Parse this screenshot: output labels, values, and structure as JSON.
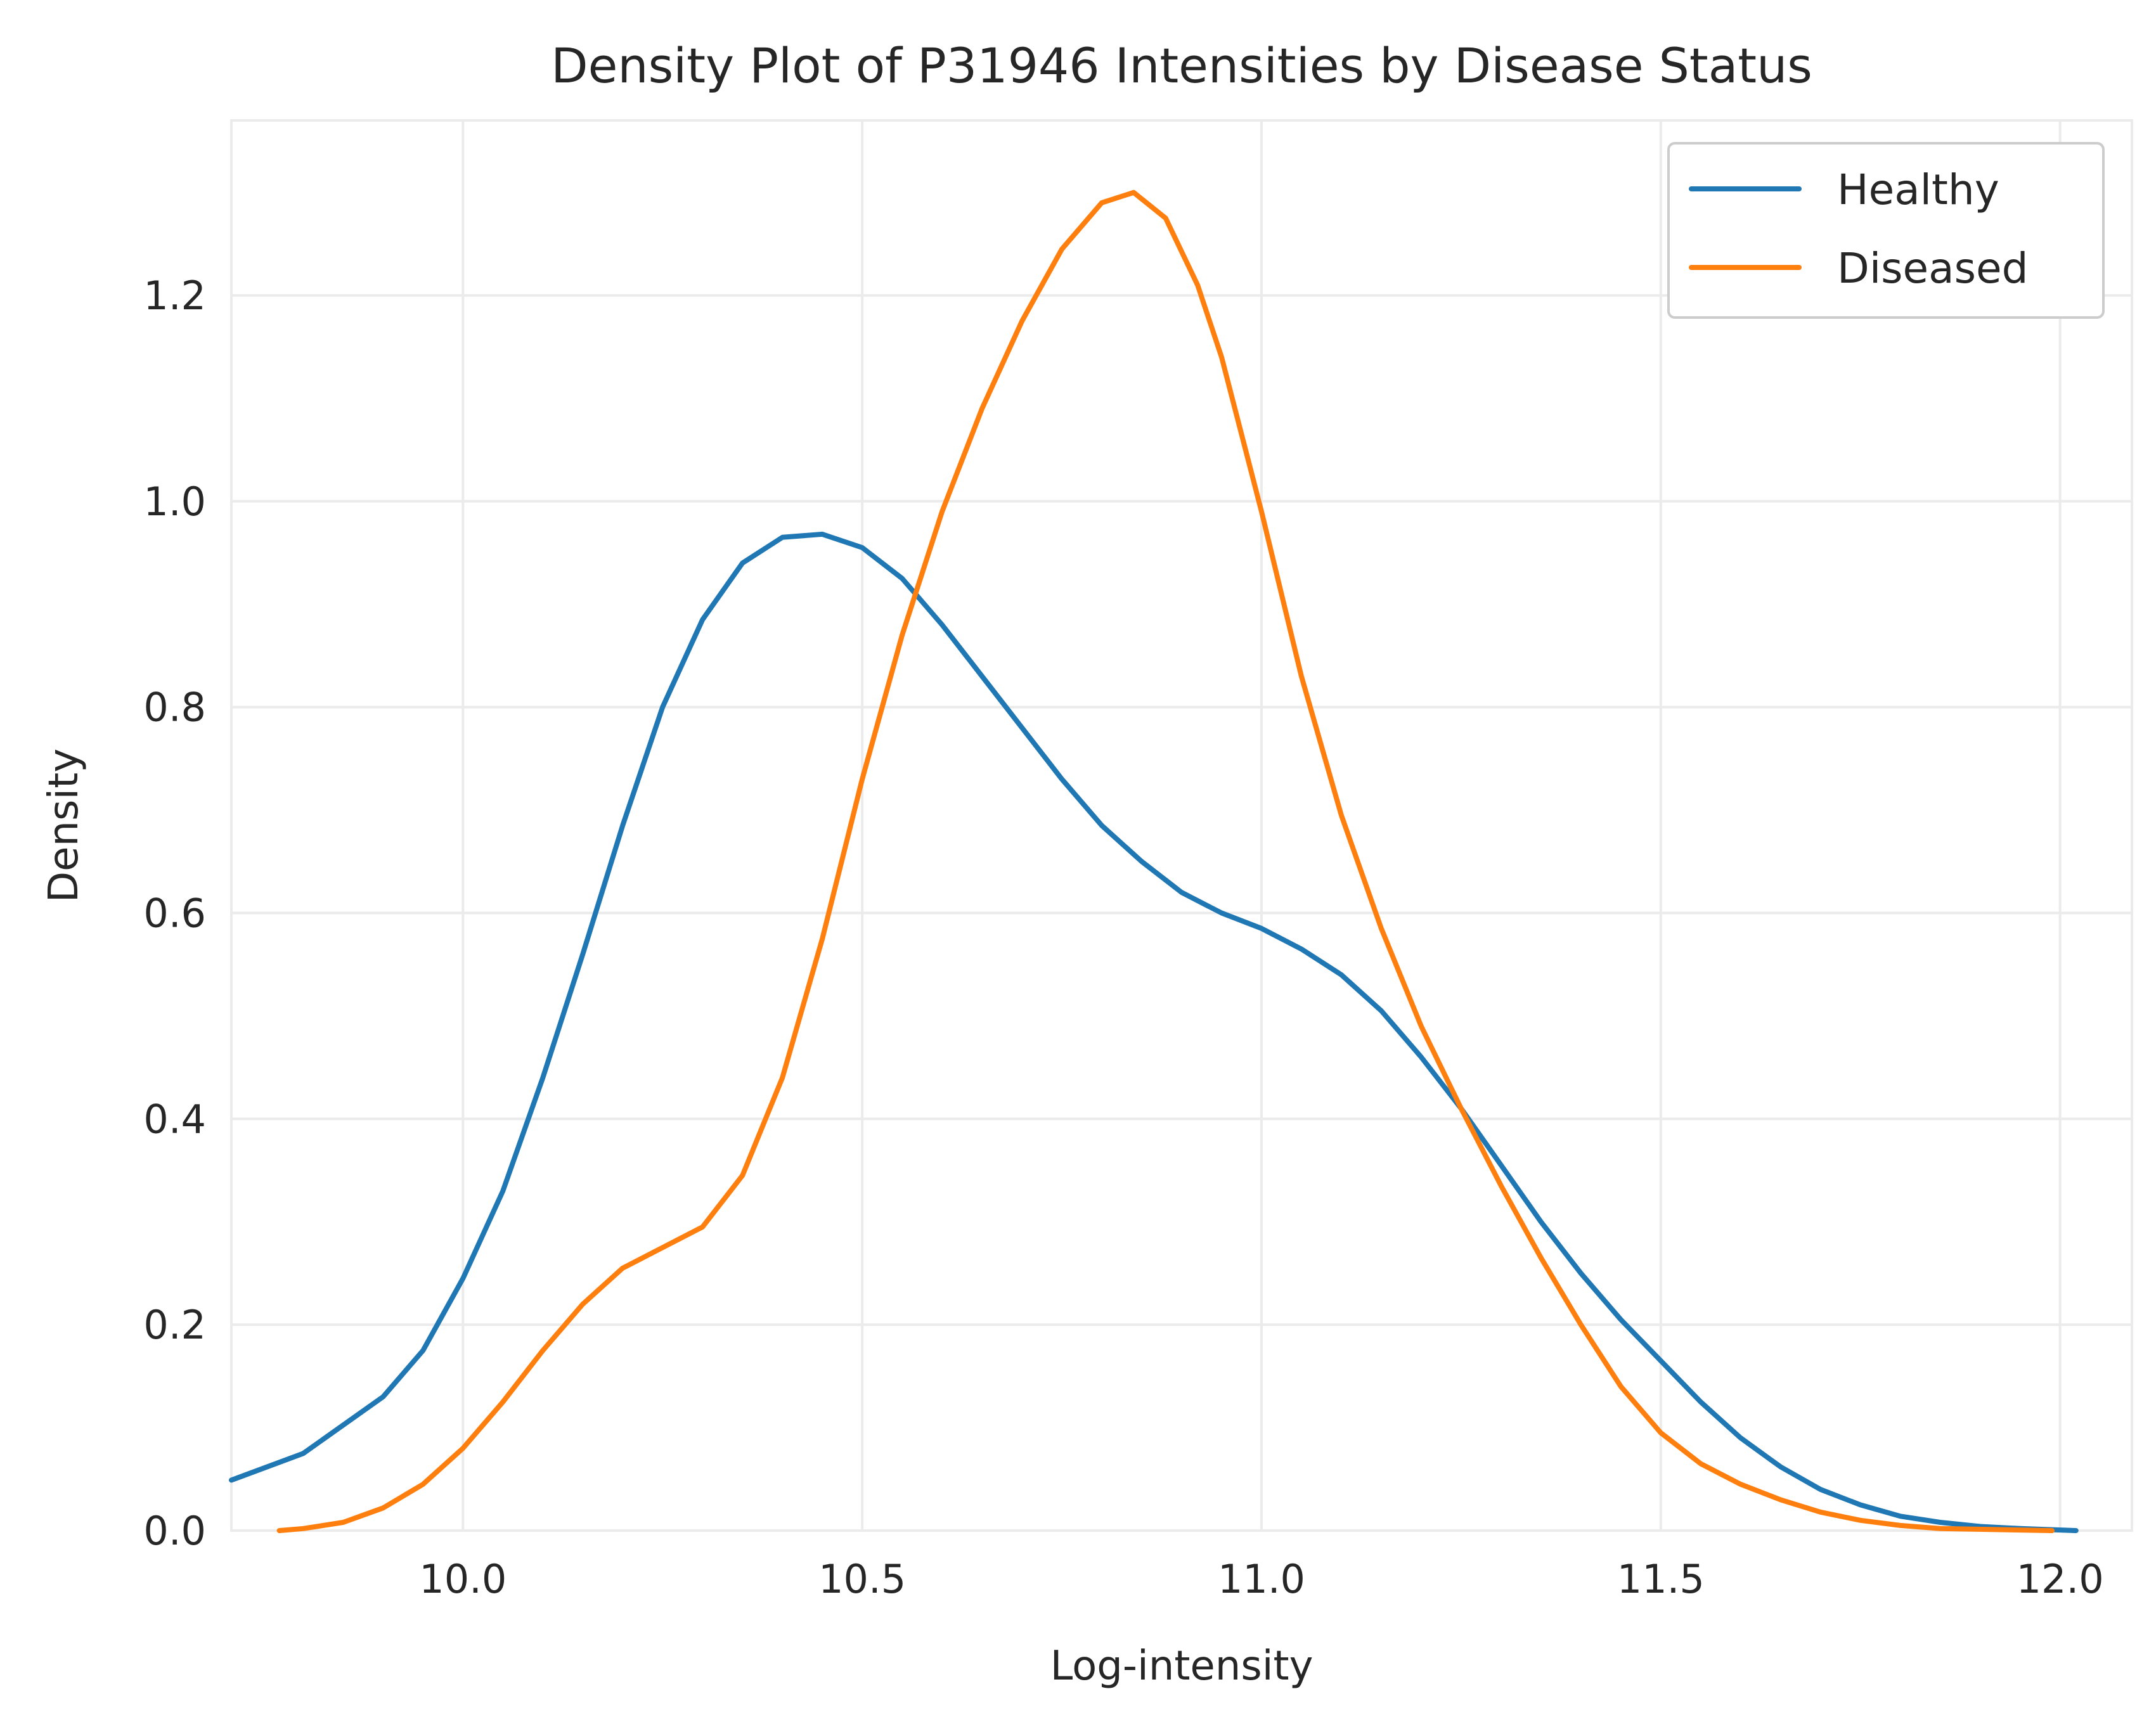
{
  "chart_data": {
    "type": "line",
    "title": "Density Plot of P31946 Intensities by Disease Status",
    "xlabel": "Log-intensity",
    "ylabel": "Density",
    "xlim": [
      9.71,
      12.09
    ],
    "ylim": [
      0.0,
      1.37
    ],
    "grid": true,
    "legend_position": "top-right",
    "x_ticks": [
      {
        "value": 10.0,
        "label": "10.0"
      },
      {
        "value": 10.5,
        "label": "10.5"
      },
      {
        "value": 11.0,
        "label": "11.0"
      },
      {
        "value": 11.5,
        "label": "11.5"
      },
      {
        "value": 12.0,
        "label": "12.0"
      }
    ],
    "y_ticks": [
      {
        "value": 0.0,
        "label": "0.0"
      },
      {
        "value": 0.2,
        "label": "0.2"
      },
      {
        "value": 0.4,
        "label": "0.4"
      },
      {
        "value": 0.6,
        "label": "0.6"
      },
      {
        "value": 0.8,
        "label": "0.8"
      },
      {
        "value": 1.0,
        "label": "1.0"
      },
      {
        "value": 1.2,
        "label": "1.2"
      }
    ],
    "series": [
      {
        "name": "Healthy",
        "color": "#1f77b4",
        "points": [
          [
            9.71,
            0.049
          ],
          [
            9.8,
            0.075
          ],
          [
            9.9,
            0.13
          ],
          [
            9.95,
            0.175
          ],
          [
            10.0,
            0.245
          ],
          [
            10.05,
            0.33
          ],
          [
            10.1,
            0.44
          ],
          [
            10.15,
            0.56
          ],
          [
            10.2,
            0.685
          ],
          [
            10.25,
            0.8
          ],
          [
            10.3,
            0.885
          ],
          [
            10.35,
            0.94
          ],
          [
            10.4,
            0.965
          ],
          [
            10.45,
            0.968
          ],
          [
            10.5,
            0.955
          ],
          [
            10.55,
            0.925
          ],
          [
            10.6,
            0.88
          ],
          [
            10.65,
            0.83
          ],
          [
            10.7,
            0.78
          ],
          [
            10.75,
            0.73
          ],
          [
            10.8,
            0.685
          ],
          [
            10.85,
            0.65
          ],
          [
            10.9,
            0.62
          ],
          [
            10.95,
            0.6
          ],
          [
            11.0,
            0.585
          ],
          [
            11.05,
            0.565
          ],
          [
            11.1,
            0.54
          ],
          [
            11.15,
            0.505
          ],
          [
            11.2,
            0.46
          ],
          [
            11.25,
            0.41
          ],
          [
            11.3,
            0.355
          ],
          [
            11.35,
            0.3
          ],
          [
            11.4,
            0.25
          ],
          [
            11.45,
            0.205
          ],
          [
            11.5,
            0.165
          ],
          [
            11.55,
            0.125
          ],
          [
            11.6,
            0.09
          ],
          [
            11.65,
            0.062
          ],
          [
            11.7,
            0.04
          ],
          [
            11.75,
            0.025
          ],
          [
            11.8,
            0.014
          ],
          [
            11.85,
            0.008
          ],
          [
            11.9,
            0.004
          ],
          [
            11.95,
            0.002
          ],
          [
            12.02,
            0.0
          ]
        ]
      },
      {
        "name": "Diseased",
        "color": "#ff7f0e",
        "points": [
          [
            9.77,
            0.0
          ],
          [
            9.8,
            0.002
          ],
          [
            9.85,
            0.008
          ],
          [
            9.9,
            0.022
          ],
          [
            9.95,
            0.045
          ],
          [
            10.0,
            0.08
          ],
          [
            10.05,
            0.125
          ],
          [
            10.1,
            0.175
          ],
          [
            10.15,
            0.22
          ],
          [
            10.2,
            0.255
          ],
          [
            10.25,
            0.275
          ],
          [
            10.3,
            0.295
          ],
          [
            10.35,
            0.345
          ],
          [
            10.4,
            0.44
          ],
          [
            10.45,
            0.575
          ],
          [
            10.5,
            0.73
          ],
          [
            10.55,
            0.87
          ],
          [
            10.6,
            0.99
          ],
          [
            10.65,
            1.09
          ],
          [
            10.7,
            1.175
          ],
          [
            10.75,
            1.245
          ],
          [
            10.8,
            1.29
          ],
          [
            10.84,
            1.3
          ],
          [
            10.88,
            1.275
          ],
          [
            10.92,
            1.21
          ],
          [
            10.95,
            1.14
          ],
          [
            11.0,
            0.99
          ],
          [
            11.05,
            0.83
          ],
          [
            11.1,
            0.695
          ],
          [
            11.15,
            0.585
          ],
          [
            11.2,
            0.49
          ],
          [
            11.25,
            0.41
          ],
          [
            11.3,
            0.335
          ],
          [
            11.35,
            0.265
          ],
          [
            11.4,
            0.2
          ],
          [
            11.45,
            0.14
          ],
          [
            11.5,
            0.095
          ],
          [
            11.55,
            0.065
          ],
          [
            11.6,
            0.045
          ],
          [
            11.65,
            0.03
          ],
          [
            11.7,
            0.018
          ],
          [
            11.75,
            0.01
          ],
          [
            11.8,
            0.005
          ],
          [
            11.85,
            0.002
          ],
          [
            11.99,
            0.0
          ]
        ]
      }
    ]
  }
}
